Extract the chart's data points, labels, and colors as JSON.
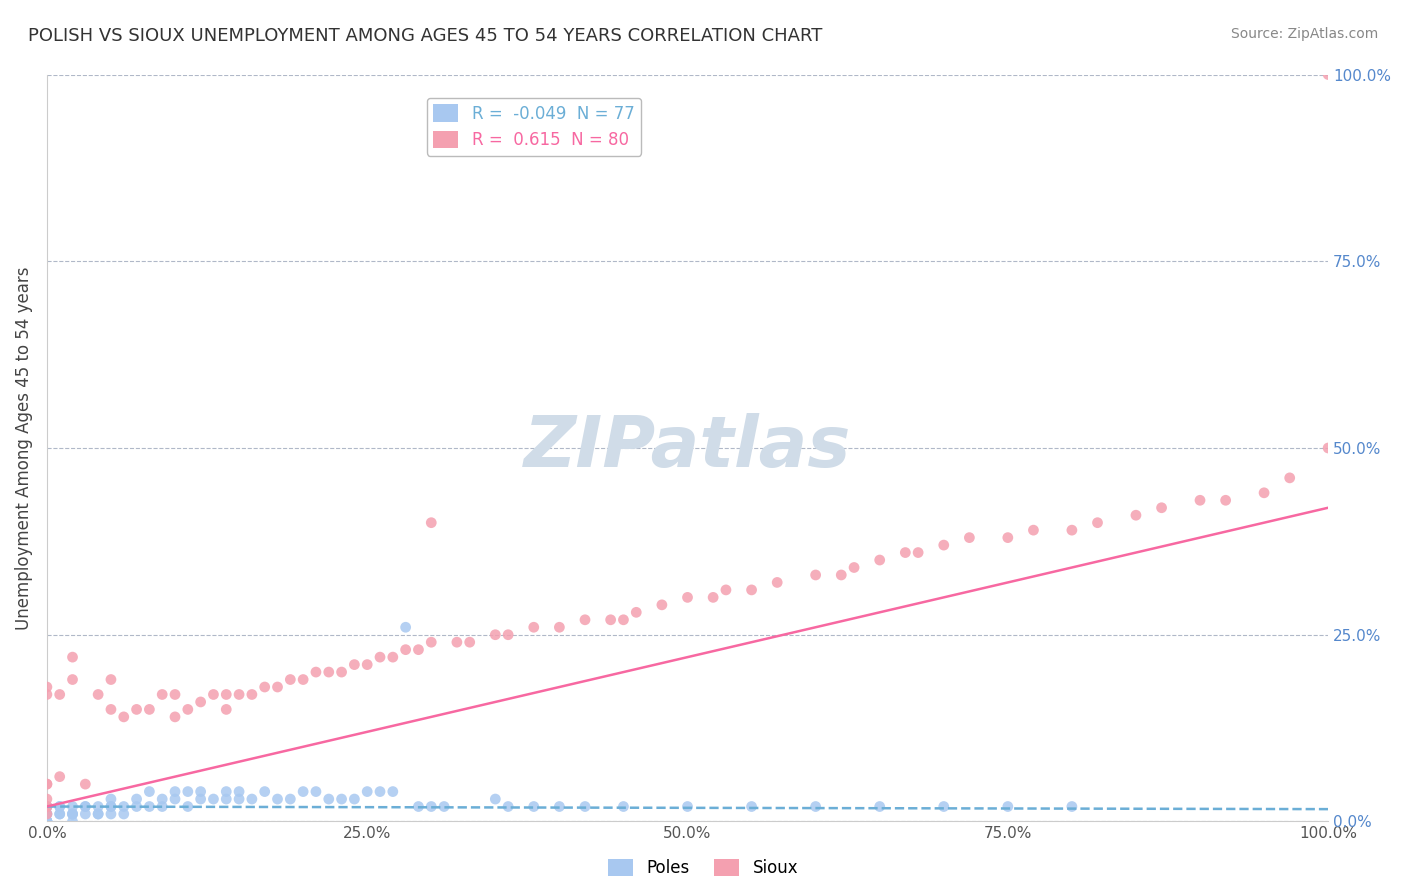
{
  "title": "POLISH VS SIOUX UNEMPLOYMENT AMONG AGES 45 TO 54 YEARS CORRELATION CHART",
  "source": "Source: ZipAtlas.com",
  "ylabel": "Unemployment Among Ages 45 to 54 years",
  "xlabel": "",
  "xlim": [
    0,
    1.0
  ],
  "ylim": [
    0,
    1.0
  ],
  "xtick_labels": [
    "0.0%",
    "25.0%",
    "50.0%",
    "75.0%",
    "100.0%"
  ],
  "xtick_vals": [
    0.0,
    0.25,
    0.5,
    0.75,
    1.0
  ],
  "ytick_labels": [
    "0.0%",
    "25.0%",
    "50.0%",
    "75.0%",
    "100.0%"
  ],
  "ytick_vals_right": [
    0.0,
    0.25,
    0.5,
    0.75,
    1.0
  ],
  "poles_color": "#a8c8f0",
  "sioux_color": "#f4a0b0",
  "poles_line_color": "#6baed6",
  "sioux_line_color": "#f768a1",
  "poles_R": -0.049,
  "poles_N": 77,
  "sioux_R": 0.615,
  "sioux_N": 80,
  "watermark": "ZIPatlas",
  "watermark_color": "#d0dce8",
  "grid_color": "#b0b8c8",
  "background_color": "#ffffff",
  "poles_x": [
    0.0,
    0.0,
    0.0,
    0.0,
    0.0,
    0.0,
    0.0,
    0.0,
    0.0,
    0.0,
    0.01,
    0.01,
    0.01,
    0.01,
    0.02,
    0.02,
    0.02,
    0.02,
    0.02,
    0.03,
    0.03,
    0.03,
    0.04,
    0.04,
    0.04,
    0.05,
    0.05,
    0.05,
    0.05,
    0.06,
    0.06,
    0.07,
    0.07,
    0.08,
    0.08,
    0.09,
    0.09,
    0.1,
    0.1,
    0.11,
    0.11,
    0.12,
    0.12,
    0.13,
    0.14,
    0.14,
    0.15,
    0.15,
    0.16,
    0.17,
    0.18,
    0.19,
    0.2,
    0.21,
    0.22,
    0.23,
    0.24,
    0.25,
    0.26,
    0.27,
    0.28,
    0.29,
    0.3,
    0.31,
    0.35,
    0.36,
    0.38,
    0.4,
    0.42,
    0.45,
    0.5,
    0.55,
    0.6,
    0.65,
    0.7,
    0.75,
    0.8
  ],
  "poles_y": [
    0.01,
    0.01,
    0.02,
    0.02,
    0.0,
    0.0,
    0.0,
    0.0,
    0.0,
    0.0,
    0.02,
    0.02,
    0.01,
    0.01,
    0.02,
    0.01,
    0.01,
    0.01,
    0.0,
    0.02,
    0.02,
    0.01,
    0.02,
    0.01,
    0.01,
    0.03,
    0.02,
    0.02,
    0.01,
    0.02,
    0.01,
    0.03,
    0.02,
    0.04,
    0.02,
    0.03,
    0.02,
    0.04,
    0.03,
    0.04,
    0.02,
    0.04,
    0.03,
    0.03,
    0.04,
    0.03,
    0.04,
    0.03,
    0.03,
    0.04,
    0.03,
    0.03,
    0.04,
    0.04,
    0.03,
    0.03,
    0.03,
    0.04,
    0.04,
    0.04,
    0.26,
    0.02,
    0.02,
    0.02,
    0.03,
    0.02,
    0.02,
    0.02,
    0.02,
    0.02,
    0.02,
    0.02,
    0.02,
    0.02,
    0.02,
    0.02,
    0.02
  ],
  "sioux_x": [
    0.0,
    0.0,
    0.0,
    0.0,
    0.0,
    0.0,
    0.0,
    0.0,
    0.01,
    0.01,
    0.02,
    0.02,
    0.03,
    0.04,
    0.05,
    0.05,
    0.06,
    0.07,
    0.08,
    0.09,
    0.1,
    0.1,
    0.11,
    0.12,
    0.13,
    0.14,
    0.14,
    0.15,
    0.16,
    0.17,
    0.18,
    0.19,
    0.2,
    0.21,
    0.22,
    0.23,
    0.24,
    0.25,
    0.26,
    0.27,
    0.28,
    0.29,
    0.3,
    0.3,
    0.32,
    0.33,
    0.35,
    0.36,
    0.38,
    0.4,
    0.42,
    0.44,
    0.45,
    0.46,
    0.48,
    0.5,
    0.52,
    0.53,
    0.55,
    0.57,
    0.6,
    0.62,
    0.63,
    0.65,
    0.67,
    0.68,
    0.7,
    0.72,
    0.75,
    0.77,
    0.8,
    0.82,
    0.85,
    0.87,
    0.9,
    0.92,
    0.95,
    0.97,
    1.0,
    1.0
  ],
  "sioux_y": [
    0.01,
    0.02,
    0.02,
    0.03,
    0.05,
    0.05,
    0.17,
    0.18,
    0.06,
    0.17,
    0.19,
    0.22,
    0.05,
    0.17,
    0.15,
    0.19,
    0.14,
    0.15,
    0.15,
    0.17,
    0.14,
    0.17,
    0.15,
    0.16,
    0.17,
    0.17,
    0.15,
    0.17,
    0.17,
    0.18,
    0.18,
    0.19,
    0.19,
    0.2,
    0.2,
    0.2,
    0.21,
    0.21,
    0.22,
    0.22,
    0.23,
    0.23,
    0.4,
    0.24,
    0.24,
    0.24,
    0.25,
    0.25,
    0.26,
    0.26,
    0.27,
    0.27,
    0.27,
    0.28,
    0.29,
    0.3,
    0.3,
    0.31,
    0.31,
    0.32,
    0.33,
    0.33,
    0.34,
    0.35,
    0.36,
    0.36,
    0.37,
    0.38,
    0.38,
    0.39,
    0.39,
    0.4,
    0.41,
    0.42,
    0.43,
    0.43,
    0.44,
    0.46,
    0.5,
    1.0
  ]
}
